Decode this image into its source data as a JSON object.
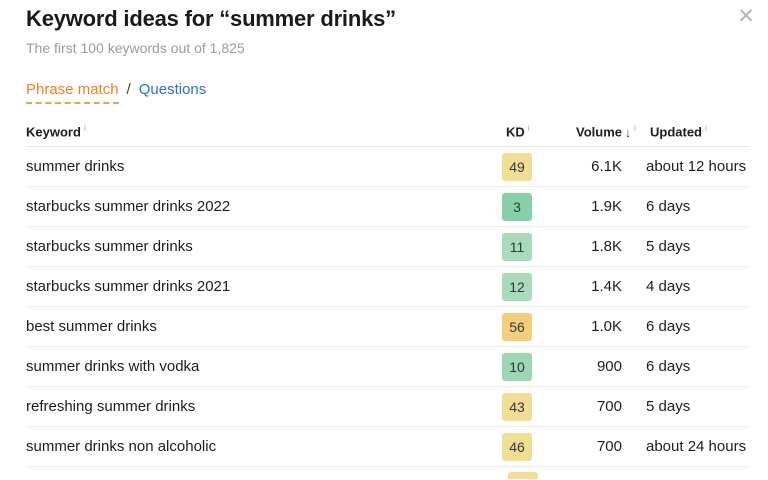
{
  "modal": {
    "title": "Keyword ideas for “summer drinks”",
    "subtitle": "The first 100 keywords out of 1,825",
    "close_label": "✕"
  },
  "tabs": {
    "phrase_match": "Phrase match",
    "separator": "/",
    "questions": "Questions",
    "active_tab": "Phrase match"
  },
  "table": {
    "columns": [
      {
        "label": "Keyword"
      },
      {
        "label": "KD"
      },
      {
        "label": "Volume",
        "sort": "desc"
      },
      {
        "label": "Updated"
      }
    ],
    "sort_icon": "↓",
    "info_icon": "i",
    "rows": [
      {
        "keyword": "summer drinks",
        "kd": "49",
        "kd_color": "#f1dd94",
        "volume": "6.1K",
        "updated": "about 12 hours"
      },
      {
        "keyword": "starbucks summer drinks 2022",
        "kd": "3",
        "kd_color": "#85cfa9",
        "volume": "1.9K",
        "updated": "6 days"
      },
      {
        "keyword": "starbucks summer drinks",
        "kd": "11",
        "kd_color": "#a9dabb",
        "volume": "1.8K",
        "updated": "5 days"
      },
      {
        "keyword": "starbucks summer drinks 2021",
        "kd": "12",
        "kd_color": "#a9dabb",
        "volume": "1.4K",
        "updated": "4 days"
      },
      {
        "keyword": "best summer drinks",
        "kd": "56",
        "kd_color": "#f2cf78",
        "volume": "1.0K",
        "updated": "6 days"
      },
      {
        "keyword": "summer drinks with vodka",
        "kd": "10",
        "kd_color": "#9ed5b2",
        "volume": "900",
        "updated": "6 days"
      },
      {
        "keyword": "refreshing summer drinks",
        "kd": "43",
        "kd_color": "#f1dd94",
        "volume": "700",
        "updated": "5 days"
      },
      {
        "keyword": "summer drinks non alcoholic",
        "kd": "46",
        "kd_color": "#f1dd94",
        "volume": "700",
        "updated": "about 24 hours"
      }
    ],
    "partial_row": {
      "kd_color": "#f1dd94"
    }
  },
  "colors": {
    "accent_orange": "#ef8023",
    "link_blue": "#2a6fd9",
    "kd_yellow": "#f1dd94",
    "kd_orange_yellow": "#f2cf78",
    "kd_green": "#85cfa9",
    "kd_light_green": "#a9dabb",
    "separator_gray": "#eaeaea",
    "muted_text": "#9b9b9b"
  }
}
